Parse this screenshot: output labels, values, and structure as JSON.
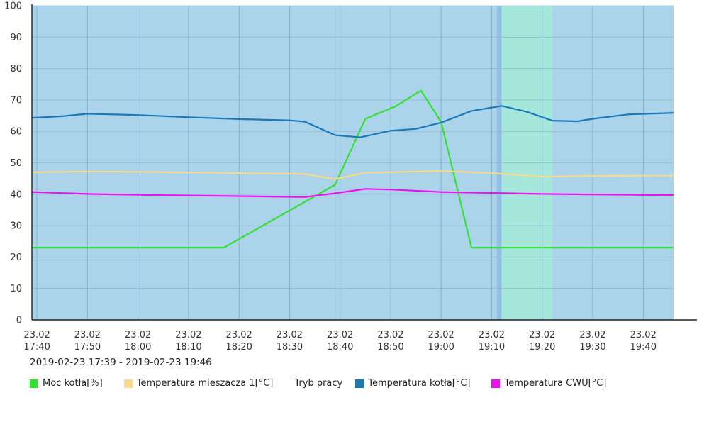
{
  "chart_data": {
    "type": "line",
    "x_labels": [
      [
        "23.02",
        "17:40"
      ],
      [
        "23.02",
        "17:50"
      ],
      [
        "23.02",
        "18:00"
      ],
      [
        "23.02",
        "18:10"
      ],
      [
        "23.02",
        "18:20"
      ],
      [
        "23.02",
        "18:30"
      ],
      [
        "23.02",
        "18:40"
      ],
      [
        "23.02",
        "18:50"
      ],
      [
        "23.02",
        "19:00"
      ],
      [
        "23.02",
        "19:10"
      ],
      [
        "23.02",
        "19:20"
      ],
      [
        "23.02",
        "19:30"
      ],
      [
        "23.02",
        "19:40"
      ]
    ],
    "x_range": [
      "2019-02-23 17:39",
      "2019-02-23 19:46"
    ],
    "ylim": [
      0,
      100
    ],
    "yticks": [
      0,
      10,
      20,
      30,
      40,
      50,
      60,
      70,
      80,
      90,
      100
    ],
    "grid": true,
    "legend_position": "bottom-left",
    "date_range_text": "2019-02-23 17:39 - 2019-02-23 19:46",
    "mode_bands": {
      "name": "Tryb pracy",
      "bands": [
        {
          "start": "17:39",
          "end": "19:11",
          "color": "#abd3ea"
        },
        {
          "start": "19:11",
          "end": "19:12",
          "color": "#8fbfe2"
        },
        {
          "start": "19:12",
          "end": "19:22",
          "color": "#a6e7dc"
        },
        {
          "start": "19:22",
          "end": "19:46",
          "color": "#abd3ea"
        }
      ]
    },
    "series": [
      {
        "name": "Moc kotła[%]",
        "color": "#33e033",
        "points": [
          [
            "17:39",
            23
          ],
          [
            "18:17",
            23
          ],
          [
            "18:39",
            43
          ],
          [
            "18:45",
            64
          ],
          [
            "18:51",
            68
          ],
          [
            "18:56",
            73
          ],
          [
            "19:00",
            63
          ],
          [
            "19:06",
            23
          ],
          [
            "19:46",
            23
          ]
        ]
      },
      {
        "name": "Temperatura mieszacza 1[°C]",
        "color": "#f6d98a",
        "points": [
          [
            "17:39",
            47
          ],
          [
            "17:50",
            47.2
          ],
          [
            "18:00",
            47.1
          ],
          [
            "18:10",
            46.9
          ],
          [
            "18:20",
            46.7
          ],
          [
            "18:33",
            46.4
          ],
          [
            "18:39",
            44.8
          ],
          [
            "18:45",
            46.8
          ],
          [
            "18:55",
            47.2
          ],
          [
            "19:00",
            47.4
          ],
          [
            "19:10",
            46.7
          ],
          [
            "19:20",
            45.6
          ],
          [
            "19:30",
            45.8
          ],
          [
            "19:46",
            45.9
          ]
        ]
      },
      {
        "name": "Temperatura kotła[°C]",
        "color": "#1a7ab8",
        "points": [
          [
            "17:39",
            64.3
          ],
          [
            "17:45",
            64.8
          ],
          [
            "17:50",
            65.6
          ],
          [
            "18:00",
            65.2
          ],
          [
            "18:10",
            64.5
          ],
          [
            "18:20",
            63.9
          ],
          [
            "18:30",
            63.5
          ],
          [
            "18:33",
            63.1
          ],
          [
            "18:39",
            58.8
          ],
          [
            "18:44",
            58.1
          ],
          [
            "18:50",
            60.2
          ],
          [
            "18:55",
            60.8
          ],
          [
            "19:00",
            62.8
          ],
          [
            "19:06",
            66.5
          ],
          [
            "19:12",
            68.1
          ],
          [
            "19:17",
            66.2
          ],
          [
            "19:22",
            63.4
          ],
          [
            "19:27",
            63.2
          ],
          [
            "19:30",
            64
          ],
          [
            "19:37",
            65.4
          ],
          [
            "19:46",
            65.9
          ]
        ]
      },
      {
        "name": "Temperatura CWU[°C]",
        "color": "#ee11ee",
        "points": [
          [
            "17:39",
            40.7
          ],
          [
            "17:50",
            40.1
          ],
          [
            "18:00",
            39.8
          ],
          [
            "18:20",
            39.4
          ],
          [
            "18:33",
            39.1
          ],
          [
            "18:39",
            40.3
          ],
          [
            "18:45",
            41.7
          ],
          [
            "18:50",
            41.5
          ],
          [
            "19:00",
            40.7
          ],
          [
            "19:10",
            40.4
          ],
          [
            "19:20",
            40.1
          ],
          [
            "19:30",
            39.9
          ],
          [
            "19:46",
            39.7
          ]
        ]
      }
    ]
  },
  "legend": [
    {
      "label": "Moc kotła[%]",
      "color": "#33e033"
    },
    {
      "label": "Temperatura mieszacza 1[°C]",
      "color": "#f6d98a"
    },
    {
      "label": "Tryb pracy",
      "color": ""
    },
    {
      "label": "Temperatura kotła[°C]",
      "color": "#1a7ab8"
    },
    {
      "label": "Temperatura CWU[°C]",
      "color": "#ee11ee"
    }
  ]
}
